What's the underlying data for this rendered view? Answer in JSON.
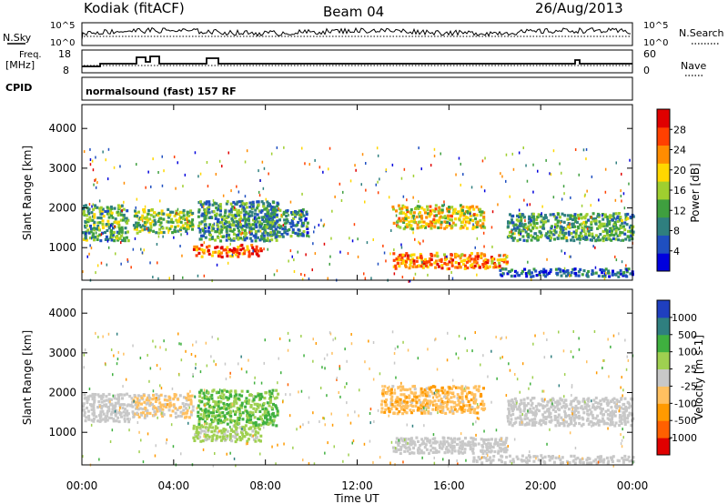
{
  "header": {
    "radar_title": "Kodiak (fitACF)",
    "beam": "Beam 04",
    "date": "26/Aug/2013"
  },
  "top_strip": {
    "nsky_label": "N.Sky",
    "nsky_ticks": [
      "10^5",
      "10^0"
    ],
    "nsearch_label": "N.Search",
    "nsearch_ticks": [
      "10^5",
      "10^0"
    ],
    "freq_label": "Freq.",
    "freq_unit": "[MHz]",
    "freq_ticks": [
      "18",
      "8"
    ],
    "nave_label": "Nave",
    "nave_ticks": [
      "60",
      "0"
    ],
    "cpid_label": "CPID",
    "cpid_value": "normalsound (fast) 157 RF"
  },
  "chart_data": [
    {
      "type": "heatmap",
      "name": "power-panel",
      "ylabel": "Slant Range [km]",
      "xlabel": "Time UT",
      "xticks": [
        "00:00",
        "04:00",
        "08:00",
        "12:00",
        "16:00",
        "20:00",
        "00:00"
      ],
      "yticks": [
        "1000",
        "2000",
        "3000",
        "4000"
      ],
      "ylim": [
        180,
        4600
      ],
      "xlim": [
        0,
        24
      ],
      "colorbar": {
        "label": "Power [dB]",
        "ticks": [
          "28",
          "24",
          "20",
          "16",
          "12",
          "8",
          "4"
        ],
        "range": [
          0,
          30
        ],
        "colors": [
          "#0000dd",
          "#1f4fc0",
          "#2f7f7f",
          "#3f9f3f",
          "#9fcf2f",
          "#ffd700",
          "#ff8c00",
          "#ff4000",
          "#e00000"
        ]
      },
      "regions": [
        {
          "t0": 0.0,
          "t1": 2.0,
          "r0": 1200,
          "r1": 2100,
          "v": 12
        },
        {
          "t0": 2.2,
          "t1": 4.8,
          "r0": 1400,
          "r1": 2000,
          "v": 14
        },
        {
          "t0": 4.8,
          "t1": 7.8,
          "r0": 800,
          "r1": 1100,
          "v": 24
        },
        {
          "t0": 5.0,
          "t1": 8.5,
          "r0": 1200,
          "r1": 2200,
          "v": 10
        },
        {
          "t0": 8.0,
          "t1": 9.8,
          "r0": 1300,
          "r1": 2000,
          "v": 9
        },
        {
          "t0": 13.5,
          "t1": 17.5,
          "r0": 1500,
          "r1": 2100,
          "v": 18
        },
        {
          "t0": 13.5,
          "t1": 18.5,
          "r0": 500,
          "r1": 900,
          "v": 22
        },
        {
          "t0": 18.5,
          "t1": 24.0,
          "r0": 1200,
          "r1": 1900,
          "v": 11
        },
        {
          "t0": 18.0,
          "t1": 24.0,
          "r0": 300,
          "r1": 500,
          "v": 6
        }
      ]
    },
    {
      "type": "heatmap",
      "name": "velocity-panel",
      "ylabel": "Slant Range [km]",
      "xlabel": "Time UT",
      "xticks": [
        "00:00",
        "04:00",
        "08:00",
        "12:00",
        "16:00",
        "20:00",
        "00:00"
      ],
      "yticks": [
        "1000",
        "2000",
        "3000",
        "4000"
      ],
      "ylim": [
        180,
        4600
      ],
      "xlim": [
        0,
        24
      ],
      "colorbar": {
        "label": "Velocity [m s-1]",
        "ticks": [
          "1000",
          "500",
          "100",
          "25",
          "-25",
          "-100",
          "-500",
          "-1000"
        ],
        "range": [
          -1200,
          1200
        ],
        "colors": [
          "#e00000",
          "#ff6000",
          "#ff9a00",
          "#ffc060",
          "#c8c8c8",
          "#9fd050",
          "#3fb03f",
          "#2f7f7f",
          "#1f3fbf"
        ]
      },
      "regions": [
        {
          "t0": 0.0,
          "t1": 2.2,
          "r0": 1300,
          "r1": 2000,
          "v": 0
        },
        {
          "t0": 2.2,
          "t1": 4.8,
          "r0": 1400,
          "r1": 2000,
          "v": -150
        },
        {
          "t0": 4.8,
          "t1": 7.8,
          "r0": 800,
          "r1": 1200,
          "v": 200
        },
        {
          "t0": 5.0,
          "t1": 8.5,
          "r0": 1200,
          "r1": 2100,
          "v": 400
        },
        {
          "t0": 13.0,
          "t1": 17.5,
          "r0": 1500,
          "r1": 2200,
          "v": -300
        },
        {
          "t0": 13.5,
          "t1": 18.5,
          "r0": 500,
          "r1": 900,
          "v": 10
        },
        {
          "t0": 18.5,
          "t1": 24.0,
          "r0": 1200,
          "r1": 1900,
          "v": -10
        },
        {
          "t0": 17.0,
          "t1": 24.0,
          "r0": 250,
          "r1": 450,
          "v": 60
        }
      ]
    }
  ]
}
